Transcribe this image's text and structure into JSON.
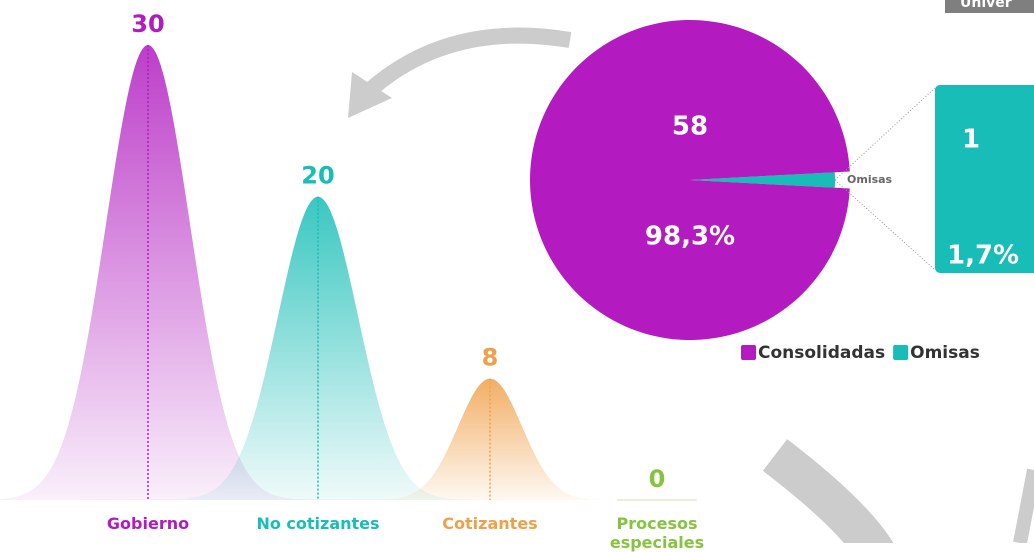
{
  "header": {
    "label": "Univer"
  },
  "chart_data": [
    {
      "type": "bell",
      "categories": [
        "Gobierno",
        "No cotizantes",
        "Cotizantes",
        "Procesos especiales"
      ],
      "values": [
        30,
        20,
        8,
        0
      ],
      "colors": [
        "#b11cc0",
        "#17bdb6",
        "#f0a048",
        "#86c440"
      ]
    },
    {
      "type": "pie",
      "categories": [
        "Consolidadas",
        "Omisas"
      ],
      "values": [
        58,
        1
      ],
      "percentages": [
        98.3,
        1.7
      ],
      "percentage_labels": [
        "98,3%",
        "1,7%"
      ],
      "colors": [
        "#b31bc0",
        "#17bdb6"
      ],
      "legend": "bottom"
    }
  ]
}
